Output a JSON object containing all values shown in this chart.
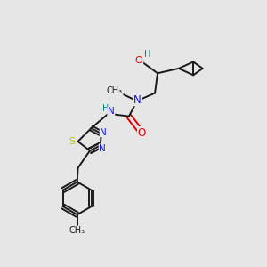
{
  "background_color": "#e6e6e6",
  "figsize": [
    3.0,
    3.0
  ],
  "dpi": 100,
  "bond_color": "#1a1a1a",
  "lw": 1.4,
  "colors": {
    "N": "#1414e6",
    "O": "#e60000",
    "S": "#c8c800",
    "H": "#008080",
    "C": "#1a1a1a"
  },
  "fs": 7.5
}
